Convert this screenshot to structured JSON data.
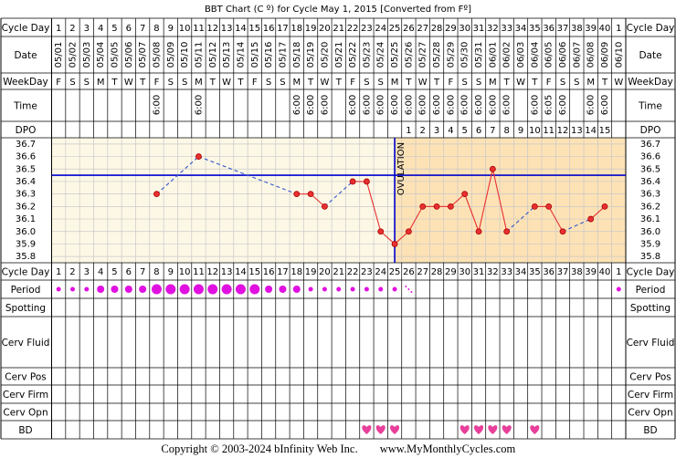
{
  "chart_data": {
    "type": "line",
    "title": "BBT Chart (C º) for Cycle May 1, 2015  [Converted from Fº]",
    "row_labels": [
      "Cycle Day",
      "Date",
      "WeekDay",
      "Time",
      "DPO",
      "Cycle Day",
      "Period",
      "Spotting",
      "Cerv Fluid",
      "Cerv Pos",
      "Cerv Firm",
      "Cerv Opn",
      "BD"
    ],
    "cycle_days": [
      1,
      2,
      3,
      4,
      5,
      6,
      7,
      8,
      9,
      10,
      11,
      12,
      13,
      14,
      15,
      16,
      17,
      18,
      19,
      20,
      21,
      22,
      23,
      24,
      25,
      26,
      27,
      28,
      29,
      30,
      31,
      32,
      33,
      34,
      35,
      36,
      37,
      38,
      39,
      40,
      1
    ],
    "dates": [
      "05/01",
      "05/02",
      "05/03",
      "05/04",
      "05/05",
      "05/06",
      "05/07",
      "05/08",
      "05/09",
      "05/10",
      "05/11",
      "05/12",
      "05/13",
      "05/14",
      "05/15",
      "05/16",
      "05/17",
      "05/18",
      "05/19",
      "05/20",
      "05/21",
      "05/22",
      "05/23",
      "05/24",
      "05/25",
      "05/26",
      "05/27",
      "05/28",
      "05/29",
      "05/30",
      "05/31",
      "06/01",
      "06/02",
      "06/03",
      "06/04",
      "06/05",
      "06/06",
      "06/07",
      "06/08",
      "06/09",
      "06/10"
    ],
    "weekdays": [
      "F",
      "S",
      "S",
      "M",
      "T",
      "W",
      "T",
      "F",
      "S",
      "S",
      "M",
      "T",
      "W",
      "T",
      "F",
      "S",
      "S",
      "M",
      "T",
      "W",
      "T",
      "F",
      "S",
      "S",
      "M",
      "T",
      "W",
      "T",
      "F",
      "S",
      "S",
      "M",
      "T",
      "W",
      "T",
      "F",
      "S",
      "S",
      "M",
      "T",
      "W"
    ],
    "times": [
      null,
      null,
      null,
      null,
      null,
      null,
      null,
      "6:00",
      null,
      null,
      "6:00",
      null,
      null,
      null,
      null,
      null,
      null,
      "6:00",
      "6:00",
      "6:00",
      null,
      "6:00",
      "6:00",
      "6:00",
      "6:00",
      "6:00",
      "6:00",
      "6:00",
      "6:00",
      "6:00",
      "6:00",
      "6:00",
      "6:00",
      null,
      "6:00",
      "6:05",
      "6:00",
      null,
      "6:00",
      "6:00",
      null
    ],
    "dpo": [
      null,
      null,
      null,
      null,
      null,
      null,
      null,
      null,
      null,
      null,
      null,
      null,
      null,
      null,
      null,
      null,
      null,
      null,
      null,
      null,
      null,
      null,
      null,
      null,
      null,
      1,
      2,
      3,
      4,
      5,
      6,
      7,
      8,
      9,
      10,
      11,
      12,
      13,
      14,
      15,
      null
    ],
    "values": [
      null,
      null,
      null,
      null,
      null,
      null,
      null,
      36.3,
      null,
      null,
      36.6,
      null,
      null,
      null,
      null,
      null,
      null,
      36.3,
      36.3,
      36.2,
      null,
      36.4,
      36.4,
      36.0,
      35.9,
      36.0,
      36.2,
      36.2,
      36.2,
      36.3,
      36.0,
      36.5,
      36.0,
      null,
      36.2,
      36.2,
      36.0,
      null,
      36.1,
      36.2,
      null
    ],
    "color": "#e83030",
    "gap_color": "#3355cc",
    "ylim": [
      35.75,
      36.75
    ],
    "yticks": [
      36.7,
      36.6,
      36.5,
      36.4,
      36.3,
      36.2,
      36.1,
      {
        "value": 36.0,
        "label": "36.0"
      },
      35.9,
      35.8
    ],
    "grid": true,
    "coverline": 36.45,
    "coverline_color": "#0000cc",
    "ovulation_day": 25,
    "ovulation_label": "OVULATION",
    "period": [
      "light",
      "light",
      "light",
      "medium",
      "medium",
      "medium",
      "medium",
      "heavy",
      "heavy",
      "heavy",
      "heavy",
      "heavy",
      "heavy",
      "heavy",
      "heavy",
      "medium",
      "medium",
      "medium",
      "light",
      "light",
      "light",
      "light",
      "light",
      "light",
      "light",
      "spotting",
      null,
      null,
      null,
      null,
      null,
      null,
      null,
      null,
      null,
      null,
      null,
      null,
      null,
      null,
      "light"
    ],
    "period_color": "#e010e0",
    "bd": [
      false,
      false,
      false,
      false,
      false,
      false,
      false,
      false,
      false,
      false,
      false,
      false,
      false,
      false,
      false,
      false,
      false,
      false,
      false,
      false,
      false,
      false,
      true,
      true,
      true,
      false,
      false,
      false,
      false,
      true,
      true,
      true,
      true,
      false,
      true,
      false,
      false,
      false,
      false,
      false,
      false
    ],
    "bd_color": "#e8409a",
    "copyright": "Copyright © 2003-2024 bInfinity Web Inc.",
    "website": "www.MyMonthlyCycles.com"
  }
}
